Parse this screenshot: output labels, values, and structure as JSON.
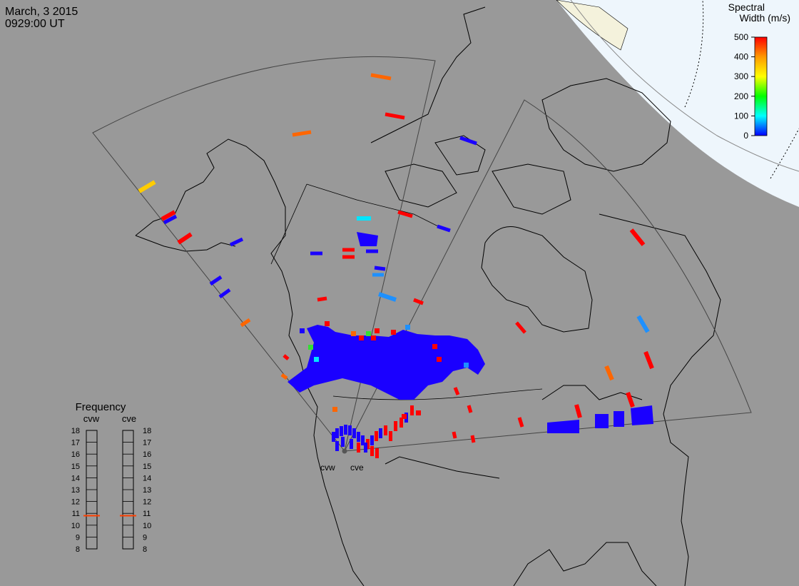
{
  "header": {
    "date": "March, 3 2015",
    "time": "0929:00 UT"
  },
  "colorbar": {
    "title_line1": "Spectral",
    "title_line2": "Width (m/s)",
    "ticks": [
      "500",
      "400",
      "300",
      "200",
      "100",
      "0"
    ],
    "gradient": [
      "#ff0000",
      "#ff9900",
      "#ffff00",
      "#00ff00",
      "#00ffff",
      "#0000ff"
    ]
  },
  "frequency_panel": {
    "title": "Frequency",
    "left_label": "cvw",
    "right_label": "cve",
    "ticks": [
      "18",
      "17",
      "16",
      "15",
      "14",
      "13",
      "12",
      "11",
      "10",
      "9",
      "8"
    ],
    "cvw_value_mhz": 10.8,
    "cve_value_mhz": 10.8,
    "marker_color": "#ff4000"
  },
  "radar_labels": {
    "west": "cvw",
    "east": "cve"
  },
  "colors": {
    "background": "#999999",
    "polar_cap": "#eef6fc",
    "land_line": "#000000",
    "fov_line": "#444444",
    "blue": "#1a00ff",
    "red": "#ff0000",
    "orange": "#ff6600",
    "yellow": "#ffcc00",
    "cyan": "#00e5ff"
  }
}
